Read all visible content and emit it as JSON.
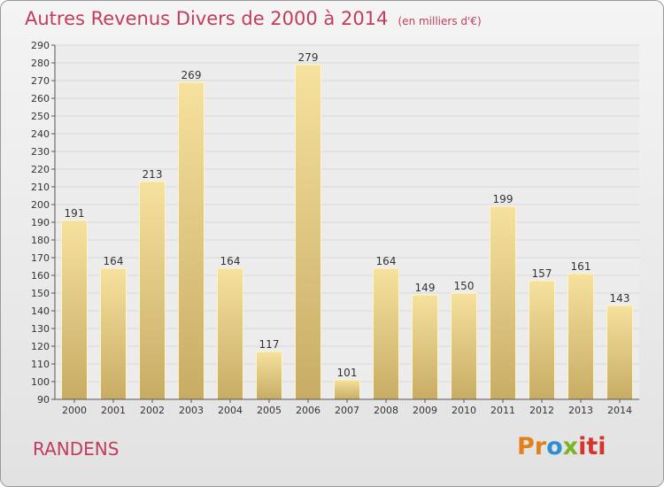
{
  "title": {
    "main": "Autres Revenus Divers de 2000 à 2014",
    "sub": "(en milliers d'€)"
  },
  "commune": "RANDENS",
  "logo": {
    "p1": "Pr",
    "p2": "o",
    "p3": "x",
    "p4": "iti"
  },
  "colors": {
    "bar_light": "#f6e19e",
    "bar_dark": "#c8ac64",
    "title": "#c23c5c",
    "grid": "#d8d8d8"
  },
  "chart_data": {
    "type": "bar",
    "categories": [
      "2000",
      "2001",
      "2002",
      "2003",
      "2004",
      "2005",
      "2006",
      "2007",
      "2008",
      "2009",
      "2010",
      "2011",
      "2012",
      "2013",
      "2014"
    ],
    "values": [
      191,
      164,
      213,
      269,
      164,
      117,
      279,
      101,
      164,
      149,
      150,
      199,
      157,
      161,
      143
    ],
    "title": "Autres Revenus Divers de 2000 à 2014",
    "subtitle": "(en milliers d'€)",
    "xlabel": "",
    "ylabel": "",
    "ylim": [
      90,
      290
    ],
    "yticks": [
      90,
      100,
      110,
      120,
      130,
      140,
      150,
      160,
      170,
      180,
      190,
      200,
      210,
      220,
      230,
      240,
      250,
      260,
      270,
      280,
      290
    ],
    "grid": true,
    "legend": "none"
  }
}
